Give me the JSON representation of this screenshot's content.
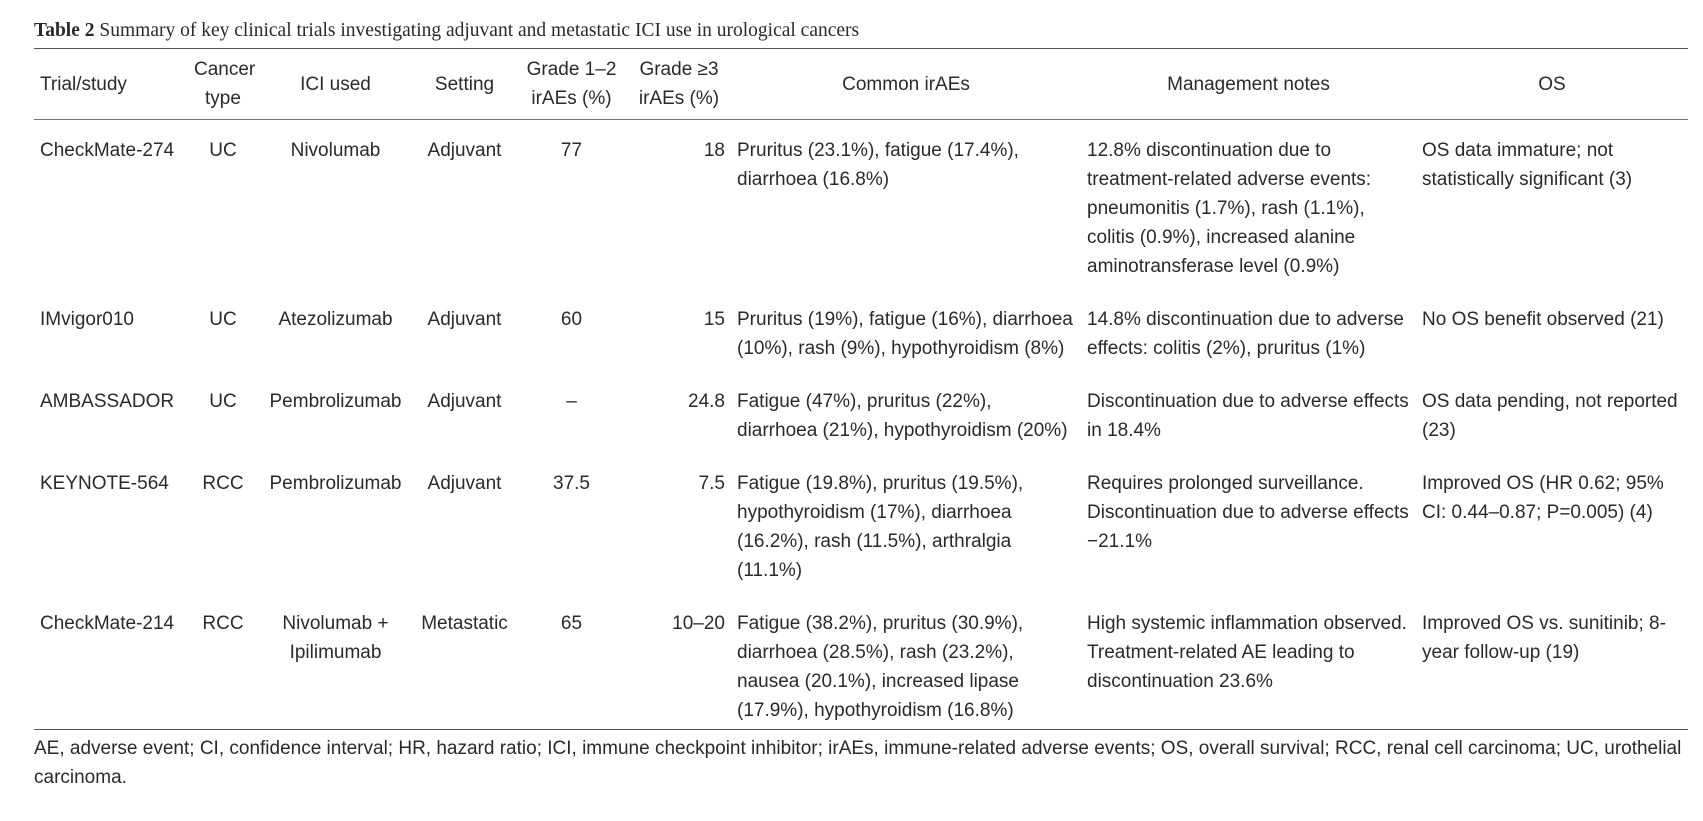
{
  "caption": {
    "label": "Table 2",
    "text": " Summary of key clinical trials investigating adjuvant and metastatic ICI use in urological cancers"
  },
  "headers": [
    "Trial/study",
    "Cancer type",
    "ICI used",
    "Setting",
    "Grade 1–2 irAEs (%)",
    "Grade ≥3 irAEs (%)",
    "Common irAEs",
    "Management notes",
    "OS"
  ],
  "rows": [
    [
      "CheckMate-274",
      "UC",
      "Nivolumab",
      "Adjuvant",
      "77",
      "18",
      "Pruritus (23.1%), fatigue (17.4%), diarrhoea (16.8%)",
      "12.8% discontinuation due to treatment-related adverse events: pneumonitis (1.7%), rash (1.1%), colitis (0.9%), increased alanine aminotransferase level (0.9%)",
      "OS data immature; not statistically significant (3)"
    ],
    [
      "IMvigor010",
      "UC",
      "Atezolizumab",
      "Adjuvant",
      "60",
      "15",
      "Pruritus (19%), fatigue (16%), diarrhoea (10%), rash (9%), hypothyroidism (8%)",
      "14.8% discontinuation due to adverse effects: colitis (2%), pruritus (1%)",
      "No OS benefit observed (21)"
    ],
    [
      "AMBASSADOR",
      "UC",
      "Pembrolizumab",
      "Adjuvant",
      "–",
      "24.8",
      "Fatigue (47%), pruritus (22%), diarrhoea (21%), hypothyroidism (20%)",
      "Discontinuation due to adverse effects in 18.4%",
      "OS data pending, not reported (23)"
    ],
    [
      "KEYNOTE-564",
      "RCC",
      "Pembrolizumab",
      "Adjuvant",
      "37.5",
      "7.5",
      "Fatigue (19.8%), pruritus (19.5%), hypothyroidism (17%), diarrhoea (16.2%), rash (11.5%), arthralgia (11.1%)",
      "Requires prolonged surveillance. Discontinuation due to adverse effects −21.1%",
      "Improved OS (HR 0.62; 95% CI: 0.44–0.87; P=0.005) (4)"
    ],
    [
      "CheckMate-214",
      "RCC",
      "Nivolumab + Ipilimumab",
      "Metastatic",
      "65",
      "10–20",
      "Fatigue (38.2%), pruritus (30.9%), diarrhoea (28.5%), rash (23.2%), nausea (20.1%), increased lipase (17.9%), hypothyroidism (16.8%)",
      "High systemic inflammation observed. Treatment-related AE leading to discontinuation 23.6%",
      "Improved OS vs. sunitinib; 8-year follow-up (19)"
    ]
  ],
  "footnote": "AE, adverse event; CI, confidence interval; HR, hazard ratio; ICI, immune checkpoint inhibitor; irAEs, immune-related adverse events; OS, overall survival; RCC, renal cell carcinoma; UC, urothelial carcinoma."
}
